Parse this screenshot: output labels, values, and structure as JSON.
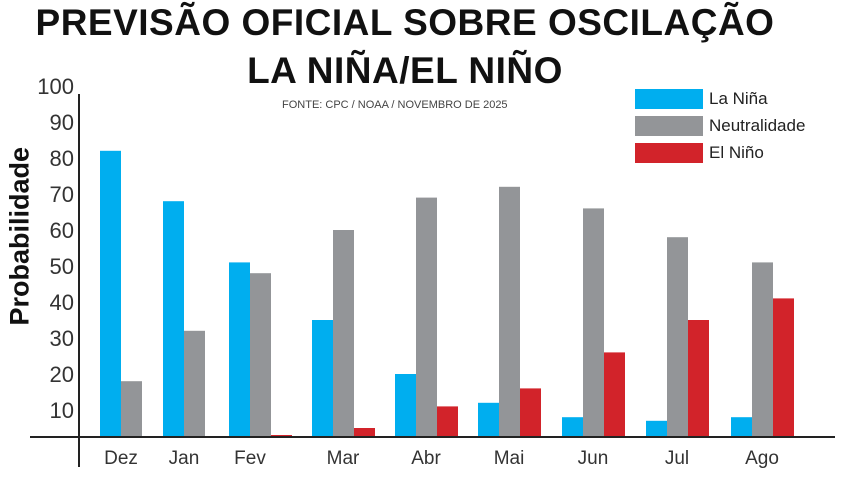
{
  "chart_data": {
    "type": "bar",
    "title_line1": "PREVISÃO OFICIAL SOBRE OSCILAÇÃO",
    "title_line2": "LA NIÑA/EL NIÑO",
    "source": "FONTE: CPC / NOAA / NOVEMBRO DE 2025",
    "ylabel": "Probabilidade",
    "xlabel": "",
    "ylim": [
      0,
      100
    ],
    "yticks": [
      10,
      20,
      30,
      40,
      50,
      60,
      70,
      80,
      90,
      100
    ],
    "categories": [
      "Dez",
      "Jan",
      "Fev",
      "Mar",
      "Abr",
      "Mai",
      "Jun",
      "Jul",
      "Ago"
    ],
    "series": [
      {
        "name": "La Niña",
        "color": "#00aeef",
        "values": [
          82,
          68,
          51,
          35,
          20,
          12,
          8,
          7,
          8
        ]
      },
      {
        "name": "Neutralidade",
        "color": "#939598",
        "values": [
          18,
          32,
          48,
          60,
          69,
          72,
          66,
          58,
          51
        ]
      },
      {
        "name": "El Niño",
        "color": "#d2232a",
        "values": [
          0,
          0,
          1,
          5,
          11,
          16,
          26,
          35,
          41
        ]
      }
    ],
    "legend_position": "top-right",
    "grid": false
  }
}
